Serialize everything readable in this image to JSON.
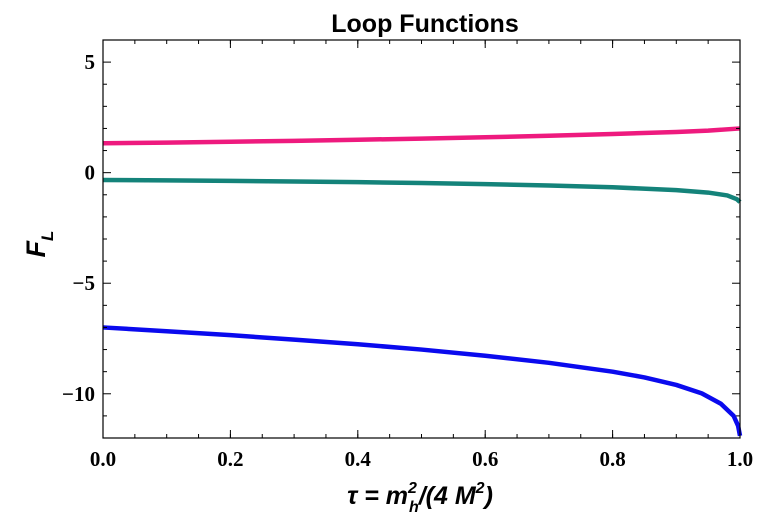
{
  "chart_data": {
    "type": "line",
    "title": "Loop Functions",
    "xlabel": {
      "text": "τ = m",
      "sup": "2",
      "sub": "h",
      "rest": "/(4 M",
      "sup2": "2",
      "close": ")"
    },
    "ylabel": {
      "text": "F",
      "sub": "L"
    },
    "xlim": [
      0.0,
      1.0
    ],
    "ylim": [
      -12,
      6
    ],
    "x_ticks": [
      0.0,
      0.2,
      0.4,
      0.6,
      0.8,
      1.0
    ],
    "x_tick_labels": [
      "0.0",
      "0.2",
      "0.4",
      "0.6",
      "0.8",
      "1.0"
    ],
    "y_ticks": [
      -10,
      -5,
      0,
      5
    ],
    "y_tick_labels": [
      "−10",
      "−5",
      "0",
      "5"
    ],
    "grid": false,
    "series": [
      {
        "color": "#ee1a7e",
        "x": [
          0.0,
          0.1,
          0.2,
          0.3,
          0.4,
          0.5,
          0.6,
          0.7,
          0.8,
          0.9,
          0.95,
          1.0
        ],
        "y": [
          1.33,
          1.36,
          1.4,
          1.44,
          1.49,
          1.54,
          1.6,
          1.67,
          1.75,
          1.84,
          1.9,
          2.0
        ]
      },
      {
        "color": "#14837a",
        "x": [
          0.0,
          0.1,
          0.2,
          0.3,
          0.4,
          0.5,
          0.6,
          0.7,
          0.8,
          0.9,
          0.95,
          0.98,
          0.995,
          1.0
        ],
        "y": [
          -0.33,
          -0.35,
          -0.37,
          -0.4,
          -0.43,
          -0.47,
          -0.52,
          -0.58,
          -0.66,
          -0.79,
          -0.9,
          -1.03,
          -1.2,
          -1.33
        ]
      },
      {
        "color": "#0a0aee",
        "x": [
          0.0,
          0.1,
          0.2,
          0.3,
          0.4,
          0.5,
          0.6,
          0.7,
          0.8,
          0.85,
          0.9,
          0.94,
          0.97,
          0.99,
          0.997,
          1.0
        ],
        "y": [
          -7.0,
          -7.17,
          -7.35,
          -7.55,
          -7.76,
          -8.0,
          -8.28,
          -8.6,
          -9.0,
          -9.26,
          -9.6,
          -9.98,
          -10.45,
          -11.0,
          -11.45,
          -11.9
        ]
      }
    ]
  }
}
